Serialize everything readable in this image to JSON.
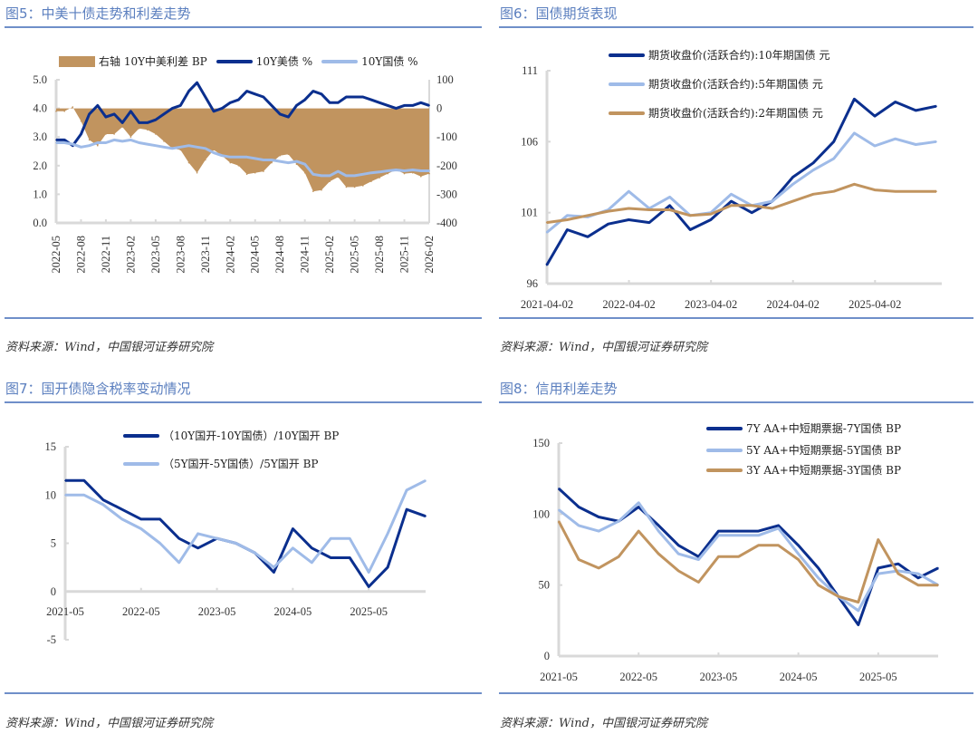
{
  "colors": {
    "dark_blue": "#0b2f8e",
    "light_blue": "#9fbbe8",
    "tan": "#c1945f",
    "title": "#5b7fbf",
    "axis": "#d9d9d9"
  },
  "source_text": "资料来源：Wind，中国银河证券研究院",
  "chart_data": [
    {
      "id": "fig5",
      "title": "图5：中美十债走势和利差走势",
      "type": "line+area",
      "x_ticks": [
        "2022-05",
        "2022-08",
        "2022-11",
        "2023-02",
        "2023-05",
        "2023-08",
        "2023-11",
        "2024-02",
        "2024-05",
        "2024-08",
        "2024-11",
        "2025-02",
        "2025-05",
        "2025-08",
        "2025-11",
        "2026-02"
      ],
      "x_range": [
        "2022-05",
        "2026-02"
      ],
      "y_left": {
        "range": [
          0,
          5
        ],
        "ticks": [
          "0.0",
          "1.0",
          "2.0",
          "3.0",
          "4.0",
          "5.0"
        ]
      },
      "y_right": {
        "range": [
          -400,
          100
        ],
        "ticks": [
          "-400",
          "-300",
          "-200",
          "-100",
          "0",
          "100"
        ]
      },
      "grid": false,
      "legend_position": "top",
      "series": [
        {
          "name": "右轴 10Y中美利差 BP",
          "axis": "right",
          "kind": "area",
          "color": "#c1945f",
          "values": [
            -10,
            -10,
            5,
            -45,
            -110,
            -130,
            -90,
            -90,
            -65,
            -100,
            -70,
            -75,
            -90,
            -115,
            -140,
            -145,
            -190,
            -225,
            -180,
            -145,
            -165,
            -190,
            -200,
            -230,
            -225,
            -220,
            -190,
            -165,
            -160,
            -195,
            -225,
            -290,
            -285,
            -255,
            -240,
            -275,
            -275,
            -270,
            -255,
            -242,
            -228,
            -215,
            -228,
            -225,
            -238,
            -228
          ]
        },
        {
          "name": "10Y美债 %",
          "axis": "left",
          "kind": "line",
          "color": "#0b2f8e",
          "values": [
            2.9,
            2.9,
            2.7,
            3.1,
            3.8,
            4.1,
            3.7,
            3.8,
            3.5,
            3.9,
            3.5,
            3.5,
            3.6,
            3.8,
            4.0,
            4.1,
            4.6,
            4.9,
            4.4,
            3.9,
            4.0,
            4.2,
            4.3,
            4.6,
            4.5,
            4.4,
            4.1,
            3.8,
            3.7,
            4.1,
            4.3,
            4.6,
            4.5,
            4.2,
            4.2,
            4.4,
            4.4,
            4.4,
            4.3,
            4.2,
            4.1,
            4.0,
            4.1,
            4.1,
            4.2,
            4.1
          ]
        },
        {
          "name": "10Y国债 %",
          "axis": "left",
          "kind": "line",
          "color": "#9fbbe8",
          "values": [
            2.8,
            2.8,
            2.75,
            2.65,
            2.7,
            2.8,
            2.8,
            2.9,
            2.85,
            2.9,
            2.8,
            2.75,
            2.7,
            2.65,
            2.6,
            2.65,
            2.7,
            2.65,
            2.6,
            2.45,
            2.35,
            2.3,
            2.3,
            2.3,
            2.25,
            2.2,
            2.2,
            2.15,
            2.1,
            2.15,
            2.05,
            1.7,
            1.65,
            1.65,
            1.8,
            1.65,
            1.65,
            1.7,
            1.75,
            1.78,
            1.82,
            1.85,
            1.82,
            1.85,
            1.82,
            1.82
          ]
        }
      ]
    },
    {
      "id": "fig6",
      "title": "图6：国债期货表现",
      "type": "line",
      "x_ticks": [
        "2021-04-02",
        "2022-04-02",
        "2023-04-02",
        "2024-04-02",
        "2025-04-02"
      ],
      "x": [
        "2021-04",
        "2021-07",
        "2021-10",
        "2022-01",
        "2022-04",
        "2022-07",
        "2022-10",
        "2023-01",
        "2023-04",
        "2023-07",
        "2023-10",
        "2024-01",
        "2024-04",
        "2024-07",
        "2024-10",
        "2025-01",
        "2025-04",
        "2025-07",
        "2025-10",
        "2026-01"
      ],
      "y": {
        "range": [
          96,
          111
        ],
        "ticks": [
          "96",
          "101",
          "106",
          "111"
        ]
      },
      "grid": false,
      "legend_position": "top",
      "series": [
        {
          "name": "期货收盘价(活跃合约):10年期国债 元",
          "color": "#0b2f8e",
          "values": [
            97.3,
            99.8,
            99.3,
            100.2,
            100.5,
            100.3,
            101.5,
            99.8,
            100.5,
            101.8,
            101.0,
            101.8,
            103.5,
            104.5,
            106.0,
            109.0,
            107.8,
            108.8,
            108.2,
            108.5
          ]
        },
        {
          "name": "期货收盘价(活跃合约):5年期国债 元",
          "color": "#9fbbe8",
          "values": [
            99.6,
            100.8,
            100.7,
            101.2,
            102.5,
            101.3,
            102.1,
            100.8,
            101.0,
            102.3,
            101.5,
            101.8,
            103.0,
            104.0,
            104.8,
            106.6,
            105.7,
            106.2,
            105.8,
            106.0
          ]
        },
        {
          "name": "期货收盘价(活跃合约):2年期国债 元",
          "color": "#c1945f",
          "values": [
            100.3,
            100.5,
            100.8,
            101.1,
            101.3,
            101.2,
            101.2,
            100.8,
            100.9,
            101.5,
            101.5,
            101.3,
            101.8,
            102.3,
            102.5,
            103.0,
            102.6,
            102.5,
            102.5,
            102.5
          ]
        }
      ]
    },
    {
      "id": "fig7",
      "title": "图7：国开债隐含税率变动情况",
      "type": "line",
      "x_ticks": [
        "2021-05",
        "2022-05",
        "2023-05",
        "2024-05",
        "2025-05"
      ],
      "x": [
        "2021-05",
        "2021-08",
        "2021-11",
        "2022-02",
        "2022-05",
        "2022-08",
        "2022-11",
        "2023-02",
        "2023-05",
        "2023-08",
        "2023-11",
        "2024-02",
        "2024-05",
        "2024-08",
        "2024-11",
        "2025-02",
        "2025-05",
        "2025-08",
        "2025-11",
        "2026-02"
      ],
      "y": {
        "range": [
          -5,
          15
        ],
        "ticks": [
          "-5",
          "0",
          "5",
          "10",
          "15"
        ]
      },
      "grid": false,
      "legend_position": "top",
      "series": [
        {
          "name": "（10Y国开-10Y国债）/10Y国开 BP",
          "color": "#0b2f8e",
          "values": [
            11.5,
            11.5,
            9.5,
            8.5,
            7.5,
            7.5,
            5.5,
            4.5,
            5.5,
            5.0,
            4.0,
            2.0,
            6.5,
            4.5,
            3.5,
            3.5,
            0.5,
            2.5,
            8.5,
            7.8
          ]
        },
        {
          "name": "（5Y国开-5Y国债）/5Y国开 BP",
          "color": "#9fbbe8",
          "values": [
            10.0,
            10.0,
            9.0,
            7.5,
            6.5,
            5.0,
            3.0,
            6.0,
            5.5,
            5.0,
            4.0,
            2.5,
            4.5,
            3.0,
            5.5,
            5.5,
            2.0,
            6.0,
            10.5,
            11.5
          ]
        }
      ]
    },
    {
      "id": "fig8",
      "title": "图8：信用利差走势",
      "type": "line",
      "x_ticks": [
        "2021-05",
        "2022-05",
        "2023-05",
        "2024-05",
        "2025-05"
      ],
      "x": [
        "2021-05",
        "2021-08",
        "2021-11",
        "2022-02",
        "2022-05",
        "2022-08",
        "2022-11",
        "2023-02",
        "2023-05",
        "2023-08",
        "2023-11",
        "2024-02",
        "2024-05",
        "2024-08",
        "2024-11",
        "2025-02",
        "2025-05",
        "2025-08",
        "2025-11",
        "2026-02"
      ],
      "y": {
        "range": [
          0,
          150
        ],
        "ticks": [
          "0",
          "50",
          "100",
          "150"
        ]
      },
      "grid": false,
      "legend_position": "top-right",
      "series": [
        {
          "name": "7Y AA+中短期票据-7Y国债 BP",
          "color": "#0b2f8e",
          "values": [
            118,
            105,
            98,
            95,
            105,
            92,
            78,
            70,
            88,
            88,
            88,
            92,
            78,
            62,
            42,
            22,
            62,
            65,
            55,
            62
          ]
        },
        {
          "name": "5Y AA+中短期票据-5Y国债 BP",
          "color": "#9fbbe8",
          "values": [
            103,
            92,
            88,
            95,
            108,
            88,
            72,
            68,
            85,
            85,
            85,
            90,
            72,
            55,
            42,
            32,
            58,
            60,
            58,
            50
          ]
        },
        {
          "name": "3Y AA+中短期票据-3Y国债 BP",
          "color": "#c1945f",
          "values": [
            95,
            68,
            62,
            70,
            88,
            72,
            60,
            52,
            70,
            70,
            78,
            78,
            68,
            50,
            42,
            38,
            82,
            58,
            50,
            50
          ]
        }
      ]
    }
  ]
}
